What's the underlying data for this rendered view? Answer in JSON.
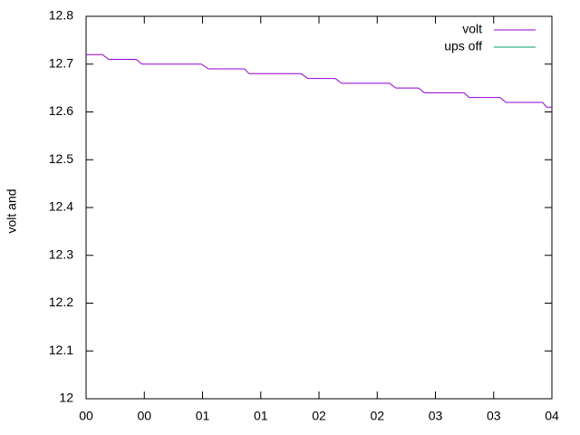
{
  "chart_data": {
    "type": "line",
    "y_label": "volt and",
    "xlim": [
      0,
      8
    ],
    "xticks": [
      {
        "value": 0,
        "label": "00"
      },
      {
        "value": 1,
        "label": "00"
      },
      {
        "value": 2,
        "label": "01"
      },
      {
        "value": 3,
        "label": "01"
      },
      {
        "value": 4,
        "label": "02"
      },
      {
        "value": 5,
        "label": "02"
      },
      {
        "value": 6,
        "label": "03"
      },
      {
        "value": 7,
        "label": "03"
      },
      {
        "value": 8,
        "label": "04"
      }
    ],
    "ylim": [
      12,
      12.8
    ],
    "yticks": [
      12,
      12.1,
      12.2,
      12.3,
      12.4,
      12.5,
      12.6,
      12.7,
      12.8
    ],
    "legend": "top-right",
    "series": [
      {
        "name": "volt",
        "color": "#9400d3",
        "x": [
          0,
          0.28,
          0.39,
          0.86,
          0.96,
          1.98,
          2.1,
          2.72,
          2.8,
          3.69,
          3.81,
          4.28,
          4.39,
          5.21,
          5.32,
          5.71,
          5.81,
          6.49,
          6.58,
          7.11,
          7.21,
          7.84,
          7.91,
          8
        ],
        "values": [
          12.72,
          12.72,
          12.71,
          12.71,
          12.7,
          12.7,
          12.69,
          12.69,
          12.68,
          12.68,
          12.67,
          12.67,
          12.66,
          12.66,
          12.65,
          12.65,
          12.64,
          12.64,
          12.63,
          12.63,
          12.62,
          12.62,
          12.61,
          12.61
        ]
      },
      {
        "name": "ups off",
        "color": "#009e73",
        "x": [],
        "values": []
      }
    ]
  }
}
